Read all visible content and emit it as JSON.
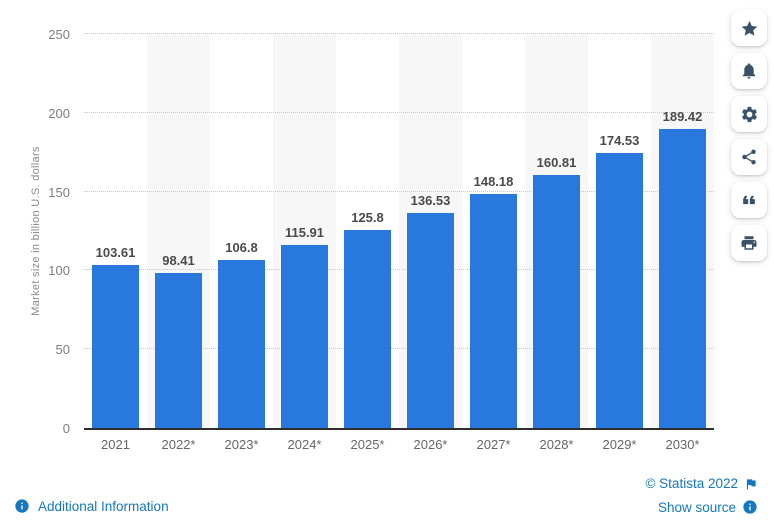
{
  "chart_data": {
    "type": "bar",
    "categories": [
      "2021",
      "2022*",
      "2023*",
      "2024*",
      "2025*",
      "2026*",
      "2027*",
      "2028*",
      "2029*",
      "2030*"
    ],
    "values": [
      103.61,
      98.41,
      106.8,
      115.91,
      125.8,
      136.53,
      148.18,
      160.81,
      174.53,
      189.42
    ],
    "value_labels": [
      "103.61",
      "98.41",
      "106.8",
      "115.91",
      "125.8",
      "136.53",
      "148.18",
      "160.81",
      "174.53",
      "189.42"
    ],
    "title": "",
    "xlabel": "",
    "ylabel": "Market size in billion U.S. dollars",
    "ylim": [
      0,
      250
    ],
    "yticks": [
      0,
      50,
      100,
      150,
      200,
      250
    ],
    "grid": "horizontal-dotted",
    "legend_position": "none",
    "bar_color": "#2878dd",
    "stripe_color": "#f7f7f7"
  },
  "toolbar": {
    "buttons": [
      {
        "name": "favorite",
        "icon": "star-icon"
      },
      {
        "name": "notifications",
        "icon": "bell-icon"
      },
      {
        "name": "settings",
        "icon": "gear-icon"
      },
      {
        "name": "share",
        "icon": "share-icon"
      },
      {
        "name": "cite",
        "icon": "quote-icon"
      },
      {
        "name": "print",
        "icon": "printer-icon"
      }
    ]
  },
  "footer": {
    "additional_info_label": "Additional Information",
    "copyright_label": "© Statista 2022",
    "show_source_label": "Show source"
  },
  "colors": {
    "bar": "#2878dd",
    "link": "#1577bf",
    "toolbar_icon": "#3a5268",
    "axis_line": "#2e2e2e",
    "gridline": "#c8c8c8"
  }
}
